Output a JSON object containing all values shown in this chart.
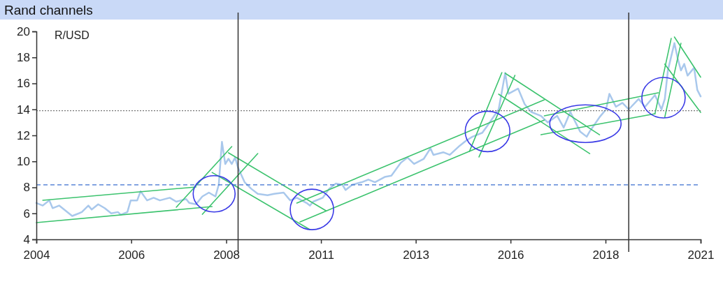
{
  "chart_data": {
    "type": "line",
    "title": "Rand channels",
    "ylabel": "R/USD",
    "xlim": [
      "2004-01-01",
      "2021-01-01"
    ],
    "xticks": [
      {
        "value": "2004-01-01",
        "label": "2004"
      },
      {
        "value": "2006-06-06",
        "label": "2006"
      },
      {
        "value": "2008-11-10",
        "label": "2008"
      },
      {
        "value": "2011-04-15",
        "label": "2011"
      },
      {
        "value": "2013-09-17",
        "label": "2013"
      },
      {
        "value": "2016-02-20",
        "label": "2016"
      },
      {
        "value": "2018-07-27",
        "label": "2018"
      },
      {
        "value": "2021-01-01",
        "label": "2021"
      }
    ],
    "ylim": [
      4,
      20
    ],
    "yticks": [
      4,
      6,
      8,
      10,
      12,
      14,
      16,
      18,
      20
    ],
    "grid": false,
    "line_style": "solid",
    "marker": "none",
    "ref_lines": [
      {
        "axis": "x",
        "value": "2009-03",
        "color": "#333333",
        "line_style": "solid"
      },
      {
        "axis": "x",
        "value": "2019-03",
        "color": "#333333",
        "line_style": "solid"
      },
      {
        "axis": "y",
        "value": 8.2,
        "color": "#3a6fd0",
        "line_style": "dashed"
      },
      {
        "axis": "y",
        "value": 13.9,
        "color": "#777777",
        "line_style": "dotted"
      }
    ],
    "series": [
      {
        "color": "#a9c8ec",
        "x": [
          "2004-01",
          "2004-03",
          "2004-05",
          "2004-06",
          "2004-08",
          "2004-10",
          "2004-12",
          "2005-02",
          "2005-03",
          "2005-05",
          "2005-06",
          "2005-08",
          "2005-10",
          "2005-12",
          "2006-02",
          "2006-03",
          "2006-05",
          "2006-06",
          "2006-08",
          "2006-09",
          "2006-11",
          "2007-01",
          "2007-03",
          "2007-06",
          "2007-08",
          "2007-11",
          "2007-12",
          "2008-02",
          "2008-04",
          "2008-06",
          "2008-08",
          "2008-09",
          "2008-10",
          "2008-11",
          "2008-12",
          "2009-01",
          "2009-02",
          "2009-03",
          "2009-05",
          "2009-07",
          "2009-09",
          "2009-12",
          "2010-02",
          "2010-05",
          "2010-07",
          "2010-09",
          "2010-12",
          "2011-01",
          "2011-02",
          "2011-05",
          "2011-07",
          "2011-09",
          "2011-11",
          "2011-12",
          "2012-02",
          "2012-05",
          "2012-07",
          "2012-09",
          "2012-12",
          "2013-02",
          "2013-05",
          "2013-07",
          "2013-09",
          "2013-12",
          "2014-02",
          "2014-03",
          "2014-06",
          "2014-08",
          "2014-11",
          "2015-01",
          "2015-03",
          "2015-06",
          "2015-08",
          "2015-11",
          "2016-01",
          "2016-02",
          "2016-05",
          "2016-07",
          "2016-09",
          "2016-12",
          "2017-02",
          "2017-05",
          "2017-07",
          "2017-09",
          "2017-12",
          "2018-02",
          "2018-03",
          "2018-06",
          "2018-08",
          "2018-09",
          "2018-11",
          "2019-01",
          "2019-03",
          "2019-06",
          "2019-08",
          "2019-11",
          "2020-01",
          "2020-02",
          "2020-03",
          "2020-05",
          "2020-06",
          "2020-07",
          "2020-08",
          "2020-09",
          "2020-11",
          "2020-12",
          "2021-01"
        ],
        "values": [
          6.8,
          6.6,
          7.0,
          6.4,
          6.6,
          6.2,
          5.8,
          6.0,
          6.1,
          6.6,
          6.3,
          6.7,
          6.4,
          6.0,
          6.1,
          5.9,
          6.1,
          7.0,
          7.0,
          7.7,
          7.0,
          7.2,
          7.0,
          7.2,
          6.9,
          7.1,
          6.8,
          6.7,
          7.3,
          7.6,
          7.3,
          8.2,
          11.5,
          9.8,
          10.2,
          9.8,
          10.3,
          9.5,
          8.4,
          7.9,
          7.5,
          7.4,
          7.5,
          7.6,
          7.0,
          7.2,
          6.8,
          6.6,
          6.9,
          7.2,
          7.9,
          8.3,
          8.2,
          7.8,
          8.2,
          8.4,
          8.6,
          8.4,
          8.8,
          8.9,
          9.9,
          10.3,
          9.8,
          10.2,
          11.0,
          10.5,
          10.7,
          10.5,
          11.2,
          11.6,
          11.9,
          12.2,
          12.9,
          14.0,
          16.8,
          15.2,
          15.6,
          14.4,
          13.8,
          13.5,
          13.0,
          13.5,
          12.6,
          13.8,
          12.3,
          11.9,
          12.3,
          13.4,
          14.0,
          15.2,
          14.2,
          14.5,
          14.0,
          14.8,
          14.2,
          15.1,
          14.0,
          14.8,
          17.0,
          19.1,
          17.9,
          17.0,
          17.5,
          16.6,
          17.2,
          15.5,
          15.0
        ]
      },
      {
        "color": "#3cc36e",
        "x": [
          "2004-03",
          "2008-02"
        ],
        "values": [
          7.01,
          8.03
        ]
      },
      {
        "color": "#3cc36e",
        "x": [
          "2004-01",
          "2008-07"
        ],
        "values": [
          5.29,
          6.52
        ]
      },
      {
        "color": "#3cc36e",
        "x": [
          "2007-08",
          "2009-01"
        ],
        "values": [
          6.47,
          11.14
        ]
      },
      {
        "color": "#3cc36e",
        "x": [
          "2008-04",
          "2009-09"
        ],
        "values": [
          5.93,
          10.6
        ]
      },
      {
        "color": "#3cc36e",
        "x": [
          "2008-12",
          "2011-06"
        ],
        "values": [
          10.66,
          6.2
        ]
      },
      {
        "color": "#3cc36e",
        "x": [
          "2008-07",
          "2011-01"
        ],
        "values": [
          9.15,
          4.75
        ]
      },
      {
        "color": "#3cc36e",
        "x": [
          "2010-09",
          "2017-01"
        ],
        "values": [
          6.79,
          14.74
        ]
      },
      {
        "color": "#3cc36e",
        "x": [
          "2010-10",
          "2017-01"
        ],
        "values": [
          5.34,
          13.18
        ]
      },
      {
        "color": "#3cc36e",
        "x": [
          "2015-02",
          "2015-12"
        ],
        "values": [
          10.77,
          16.83
        ]
      },
      {
        "color": "#3cc36e",
        "x": [
          "2015-05",
          "2016-04"
        ],
        "values": [
          10.34,
          16.62
        ]
      },
      {
        "color": "#3cc36e",
        "x": [
          "2016-01",
          "2018-06"
        ],
        "values": [
          16.78,
          12.05
        ]
      },
      {
        "color": "#3cc36e",
        "x": [
          "2015-11",
          "2018-03"
        ],
        "values": [
          15.17,
          10.6
        ]
      },
      {
        "color": "#3cc36e",
        "x": [
          "2016-12",
          "2019-11"
        ],
        "values": [
          12.05,
          13.66
        ]
      },
      {
        "color": "#3cc36e",
        "x": [
          "2017-01",
          "2019-12"
        ],
        "values": [
          13.5,
          15.28
        ]
      },
      {
        "color": "#3cc36e",
        "x": [
          "2019-11",
          "2020-04"
        ],
        "values": [
          13.66,
          19.46
        ]
      },
      {
        "color": "#3cc36e",
        "x": [
          "2020-02",
          "2020-07"
        ],
        "values": [
          13.4,
          19.09
        ]
      },
      {
        "color": "#3cc36e",
        "x": [
          "2020-05",
          "2021-01"
        ],
        "values": [
          19.57,
          16.48
        ]
      },
      {
        "color": "#3cc36e",
        "x": [
          "2020-02",
          "2021-01"
        ],
        "values": [
          17.48,
          13.77
        ]
      }
    ]
  }
}
